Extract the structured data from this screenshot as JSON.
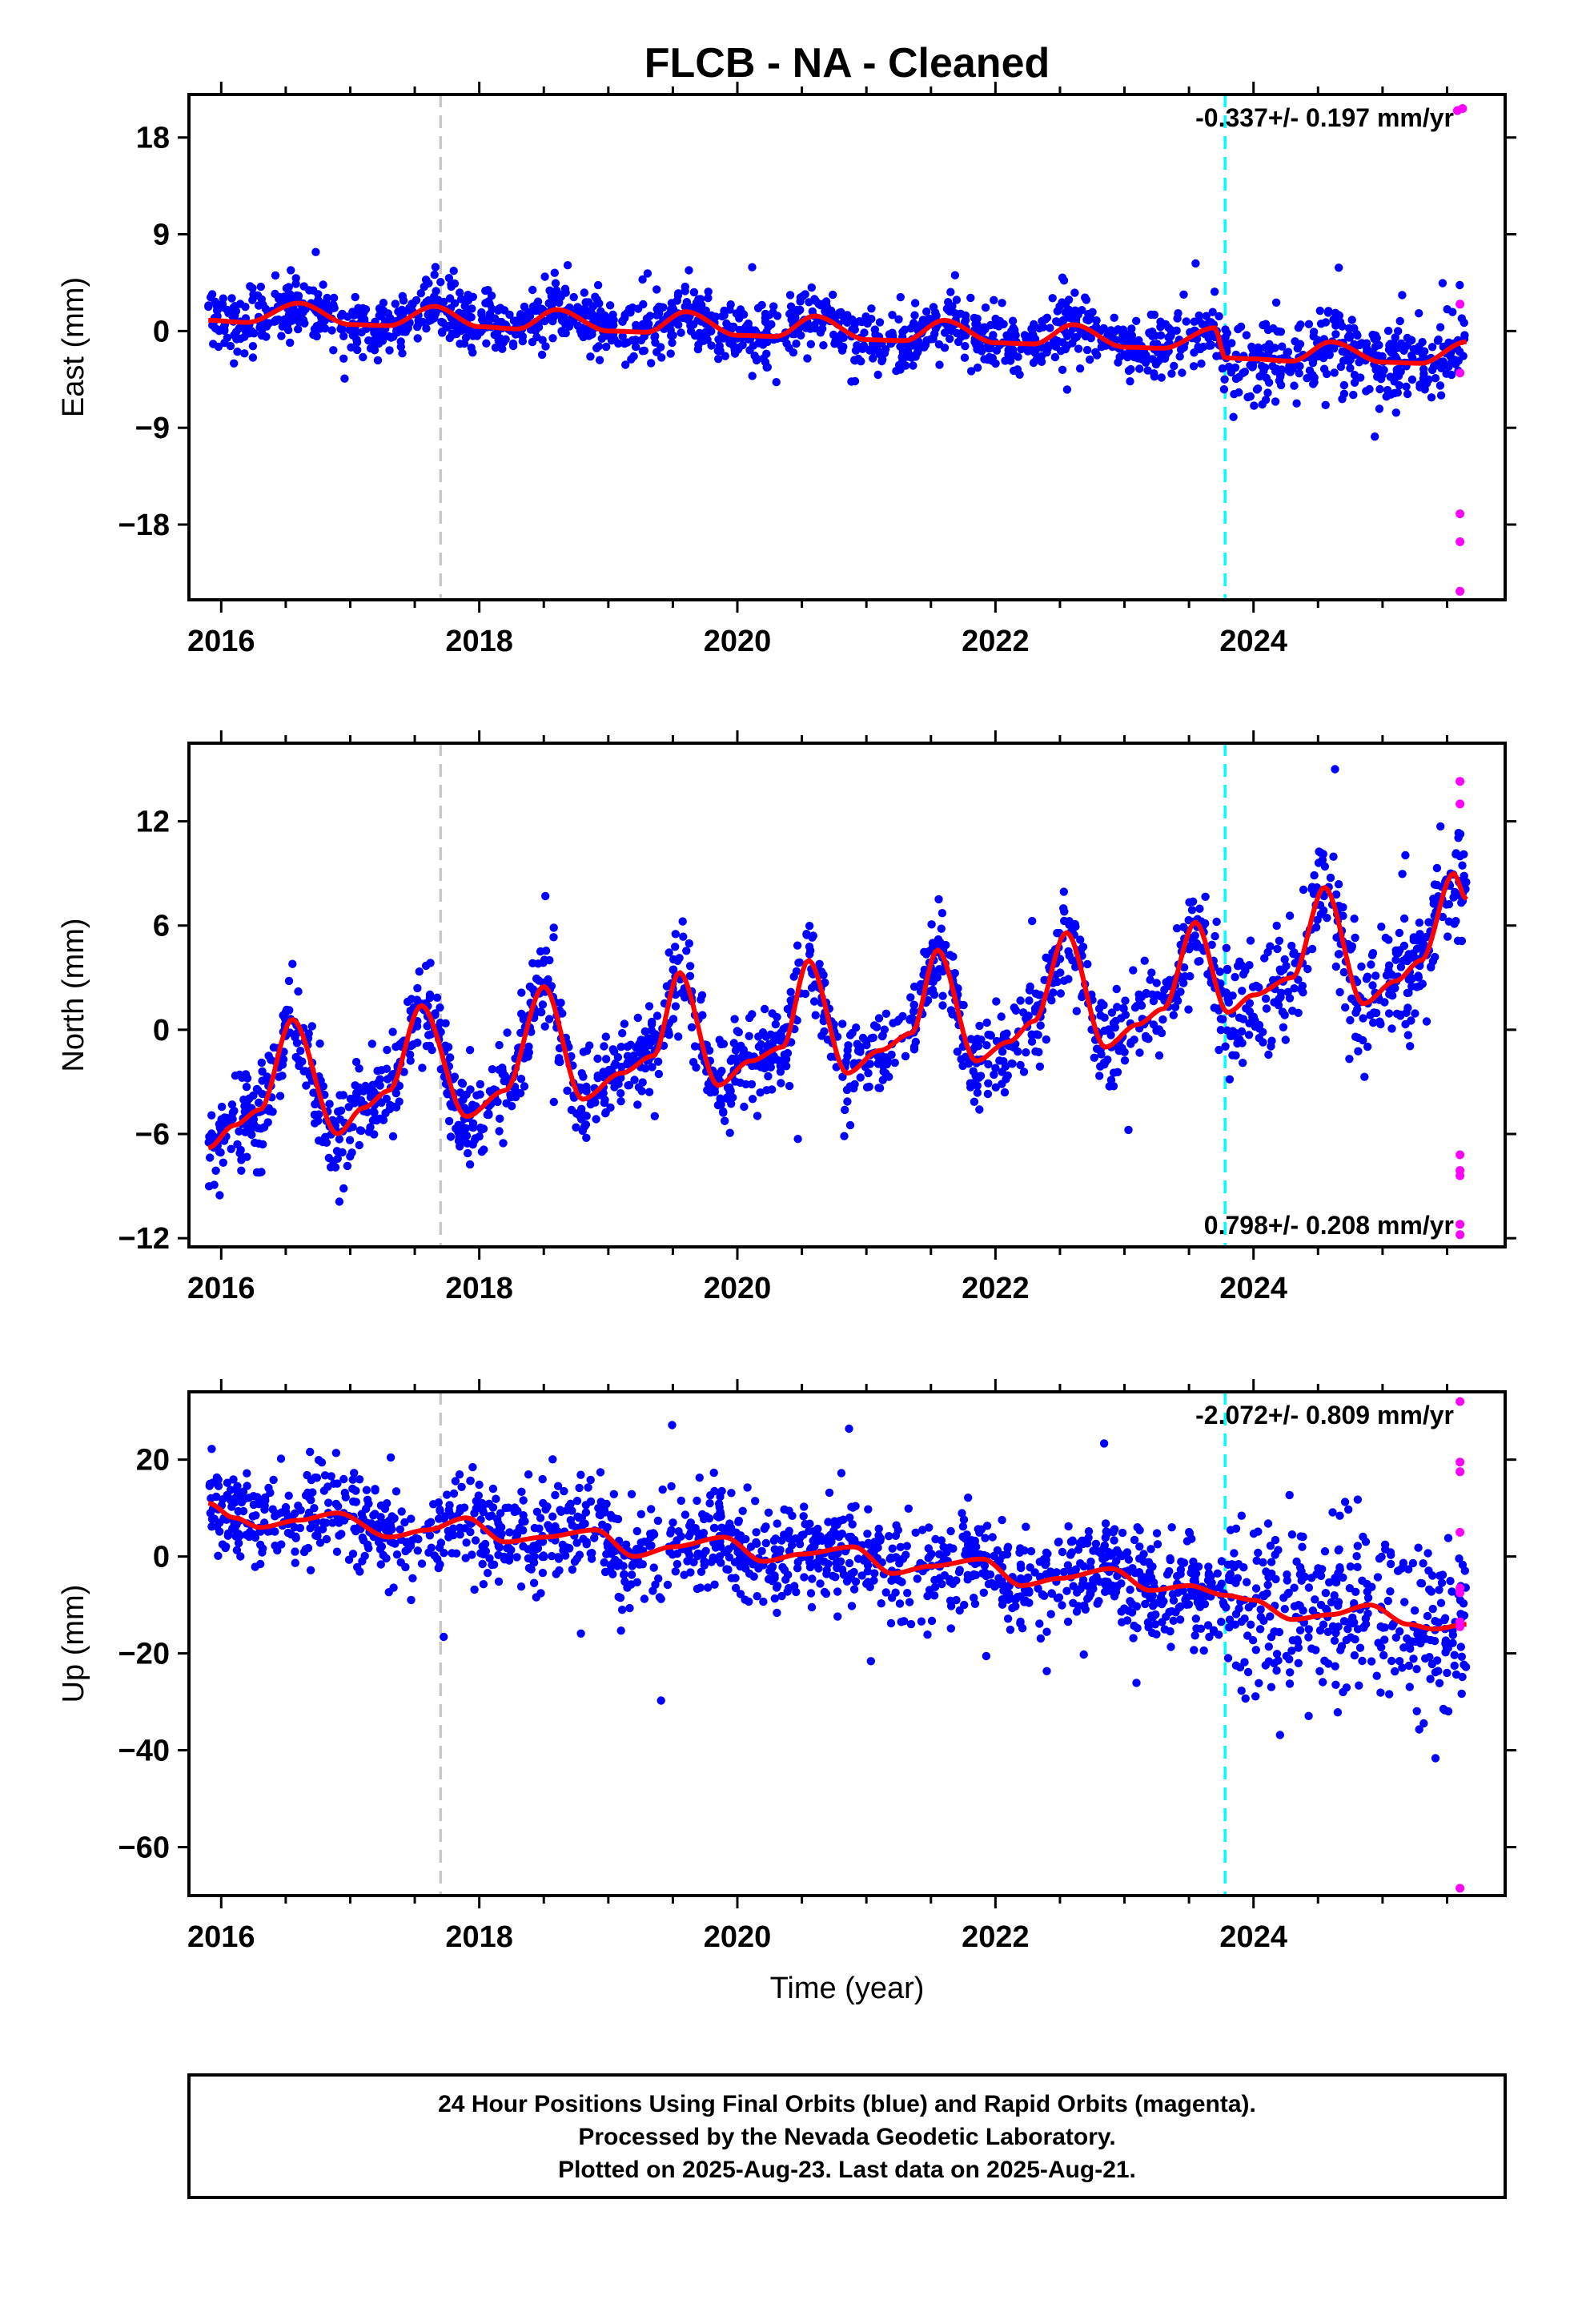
{
  "title": "FLCB  - NA - Cleaned",
  "colors": {
    "final_orbits": "#0000ff",
    "rapid_orbits": "#ff00ff",
    "trend_line": "#ff0000",
    "event_line_gray": "#c8c8c8",
    "event_line_cyan": "#00ffff"
  },
  "footer": {
    "line1": "24 Hour Positions Using Final Orbits (blue) and Rapid Orbits (magenta).",
    "line2": "Processed by the Nevada Geodetic Laboratory.",
    "line3": "Plotted on 2025-Aug-23. Last data on 2025-Aug-21."
  },
  "chart_data": [
    {
      "type": "scatter",
      "component": "East",
      "ylabel": "East (mm)",
      "xlabel": "",
      "xlim": [
        2015.75,
        2025.95
      ],
      "ylim": [
        -25,
        22
      ],
      "yticks": [
        18,
        9,
        0,
        -9,
        -18
      ],
      "ytick_labels": [
        "18",
        "9",
        "0",
        "−9",
        "−18"
      ],
      "xticks": [
        2016,
        2018,
        2020,
        2022,
        2024
      ],
      "xtick_labels": [
        "2016",
        "2018",
        "2020",
        "2022",
        "2024"
      ],
      "rate_label": "-0.337+/- 0.197 mm/yr",
      "rate_position": "top-right",
      "event_lines": [
        {
          "x": 2017.7,
          "color": "gray"
        },
        {
          "x": 2023.78,
          "color": "cyan"
        }
      ],
      "trend_model": {
        "start": 2015.9,
        "end": 2025.65,
        "intercept": 1.0,
        "slope": -0.33,
        "annual_amp": 1.0,
        "annual_peak": 0.6,
        "offsets": [
          {
            "x": 2023.78,
            "dy": -1.2
          }
        ]
      },
      "trend": {
        "x": [
          2015.9,
          2016.2,
          2016.6,
          2017.0,
          2017.3,
          2017.65,
          2018.0,
          2018.3,
          2018.6,
          2019.0,
          2019.3,
          2019.6,
          2020.0,
          2020.3,
          2020.6,
          2021.0,
          2021.3,
          2021.6,
          2022.0,
          2022.3,
          2022.6,
          2023.0,
          2023.3,
          2023.7,
          2023.78,
          2024.0,
          2024.3,
          2024.6,
          2025.0,
          2025.3,
          2025.65
        ],
        "y": [
          1.0,
          0.8,
          2.6,
          0.6,
          0.5,
          2.3,
          0.4,
          0.2,
          2.0,
          0.0,
          -0.1,
          1.8,
          -0.4,
          -0.5,
          1.4,
          -0.8,
          -0.9,
          1.0,
          -1.1,
          -1.2,
          0.6,
          -1.5,
          -1.6,
          0.3,
          -2.5,
          -2.6,
          -2.8,
          -1.0,
          -2.9,
          -3.0,
          -1.0
        ]
      },
      "scatter_model": {
        "n_final": 1800,
        "noise_sd": 1.4,
        "late_noise_sd": 2.0
      },
      "rapid": {
        "x": [
          2025.58,
          2025.62,
          2025.6,
          2025.6,
          2025.6,
          2025.6,
          2025.6
        ],
        "y": [
          20.5,
          20.7,
          2.5,
          -3.9,
          -17.0,
          -19.6,
          -24.2
        ]
      }
    },
    {
      "type": "scatter",
      "component": "North",
      "ylabel": "North (mm)",
      "xlabel": "",
      "xlim": [
        2015.75,
        2025.95
      ],
      "ylim": [
        -12.5,
        16.5
      ],
      "yticks": [
        12,
        6,
        0,
        -6,
        -12
      ],
      "ytick_labels": [
        "12",
        "6",
        "0",
        "−6",
        "−12"
      ],
      "xticks": [
        2016,
        2018,
        2020,
        2022,
        2024
      ],
      "xtick_labels": [
        "2016",
        "2018",
        "2020",
        "2022",
        "2024"
      ],
      "rate_label": "0.798+/- 0.208 mm/yr",
      "rate_position": "bottom-right",
      "event_lines": [
        {
          "x": 2017.7,
          "color": "gray"
        },
        {
          "x": 2023.78,
          "color": "cyan"
        }
      ],
      "trend_model": {
        "start": 2015.9,
        "end": 2025.65,
        "intercept": -3.0,
        "slope": 0.85,
        "annual_amp": 3.3,
        "annual_peak": 0.55,
        "offsets": []
      },
      "trend": {
        "x": [
          2015.9,
          2016.1,
          2016.3,
          2016.55,
          2016.9,
          2017.1,
          2017.3,
          2017.55,
          2017.9,
          2018.2,
          2018.5,
          2018.8,
          2019.1,
          2019.35,
          2019.55,
          2019.85,
          2020.1,
          2020.35,
          2020.55,
          2020.85,
          2021.1,
          2021.35,
          2021.55,
          2021.85,
          2022.1,
          2022.3,
          2022.55,
          2022.85,
          2023.1,
          2023.3,
          2023.55,
          2023.8,
          2024.0,
          2024.3,
          2024.55,
          2024.85,
          2025.1,
          2025.3,
          2025.55,
          2025.65
        ],
        "y": [
          -6.8,
          -5.5,
          -4.6,
          0.6,
          -6.0,
          -4.5,
          -3.5,
          1.4,
          -5.0,
          -3.5,
          2.5,
          -4.0,
          -2.5,
          -1.5,
          3.3,
          -3.2,
          -1.8,
          -1.0,
          4.0,
          -2.5,
          -1.2,
          -0.2,
          4.6,
          -1.8,
          -0.7,
          0.5,
          5.6,
          -1.0,
          0.3,
          1.2,
          6.2,
          1.0,
          2.0,
          3.0,
          8.2,
          1.5,
          2.8,
          4.0,
          9.0,
          7.5
        ]
      },
      "scatter_model": {
        "n_final": 1800,
        "noise_sd": 1.3,
        "late_noise_sd": 1.8
      },
      "rapid": {
        "x": [
          2025.6,
          2025.6,
          2025.6,
          2025.6,
          2025.6,
          2025.6,
          2025.6
        ],
        "y": [
          14.3,
          13.0,
          -7.2,
          -8.1,
          -8.4,
          -11.2,
          -11.8
        ]
      }
    },
    {
      "type": "scatter",
      "component": "Up",
      "ylabel": "Up (mm)",
      "xlabel": "Time (year)",
      "xlim": [
        2015.75,
        2025.95
      ],
      "ylim": [
        -70,
        34
      ],
      "yticks": [
        20,
        0,
        -20,
        -40,
        -60
      ],
      "ytick_labels": [
        "20",
        "0",
        "−20",
        "−40",
        "−60"
      ],
      "xticks": [
        2016,
        2018,
        2020,
        2022,
        2024
      ],
      "xtick_labels": [
        "2016",
        "2018",
        "2020",
        "2022",
        "2024"
      ],
      "rate_label": "-2.072+/- 0.809 mm/yr",
      "rate_position": "top-right",
      "event_lines": [
        {
          "x": 2017.7,
          "color": "gray"
        },
        {
          "x": 2023.78,
          "color": "cyan"
        }
      ],
      "trend_model": {
        "start": 2015.9,
        "end": 2025.65,
        "intercept": 8.0,
        "slope": -2.1,
        "annual_amp": 2.5,
        "annual_peak": 0.9,
        "offsets": [
          {
            "x": 2023.78,
            "dy": -2.0
          }
        ]
      },
      "trend": {
        "x": [
          2015.9,
          2016.1,
          2016.3,
          2016.6,
          2016.9,
          2017.3,
          2017.6,
          2017.9,
          2018.2,
          2018.5,
          2018.9,
          2019.2,
          2019.5,
          2019.9,
          2020.2,
          2020.5,
          2020.9,
          2021.2,
          2021.5,
          2021.9,
          2022.2,
          2022.5,
          2022.9,
          2023.2,
          2023.5,
          2023.78,
          2024.0,
          2024.3,
          2024.6,
          2024.9,
          2025.2,
          2025.4,
          2025.65
        ],
        "y": [
          11.0,
          8.0,
          6.0,
          7.5,
          9.0,
          4.0,
          5.5,
          8.0,
          3.0,
          4.0,
          5.5,
          0.0,
          2.0,
          4.0,
          -1.0,
          0.5,
          2.0,
          -3.5,
          -2.0,
          -0.5,
          -6.0,
          -4.5,
          -2.5,
          -7.0,
          -6.0,
          -8.0,
          -9.0,
          -13.0,
          -12.0,
          -10.0,
          -14.0,
          -15.0,
          -14.0
        ]
      },
      "scatter_model": {
        "n_final": 1800,
        "noise_sd": 5.0,
        "late_noise_sd": 9.0
      },
      "rapid": {
        "x": [
          2025.6,
          2025.6,
          2025.6,
          2025.6,
          2025.6,
          2025.6,
          2025.6,
          2025.6,
          2025.6
        ],
        "y": [
          32.0,
          19.5,
          17.5,
          5.0,
          -6.5,
          -7.5,
          -13.5,
          -14.5,
          -68.5
        ]
      }
    }
  ]
}
